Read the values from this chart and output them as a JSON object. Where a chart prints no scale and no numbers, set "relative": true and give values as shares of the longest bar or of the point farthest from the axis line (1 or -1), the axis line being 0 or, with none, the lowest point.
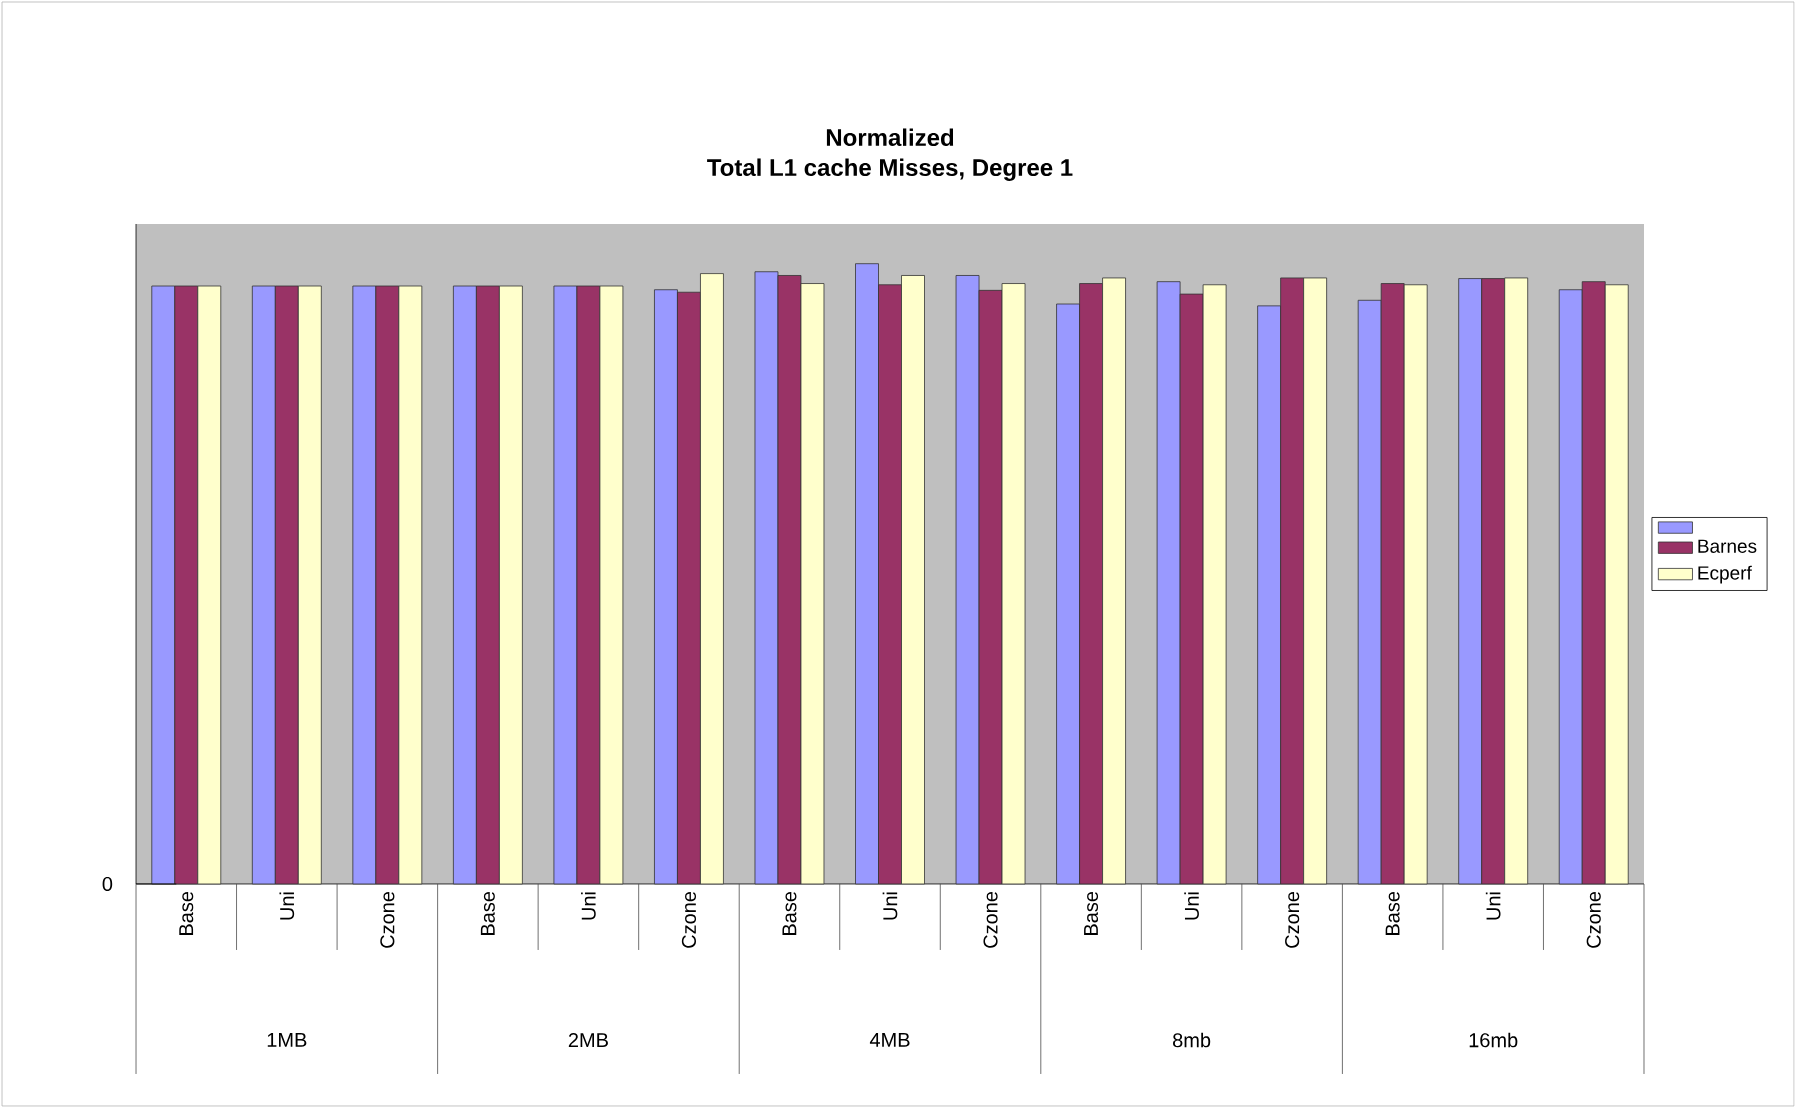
{
  "chart_data": {
    "type": "bar",
    "title": "Normalized",
    "subtitle": "Total L1 cache Misses, Degree 1",
    "relative": true,
    "categories": [
      "Base",
      "Uni",
      "Czone",
      "Base",
      "Uni",
      "Czone",
      "Base",
      "Uni",
      "Czone",
      "Base",
      "Uni",
      "Czone",
      "Base",
      "Uni",
      "Czone"
    ],
    "annotations": [
      "0",
      "1MB",
      "2MB",
      "4MB",
      "8mb",
      "16mb"
    ],
    "series": [
      {
        "color": "#9999ff",
        "values": [
          0.964,
          0.964,
          0.964,
          0.964,
          0.964,
          0.958,
          0.987,
          1.0,
          0.981,
          0.935,
          0.971,
          0.932,
          0.941,
          0.976,
          0.958
        ]
      },
      {
        "name": "Barnes",
        "color": "#993366",
        "values": [
          0.964,
          0.964,
          0.964,
          0.964,
          0.964,
          0.954,
          0.981,
          0.966,
          0.957,
          0.968,
          0.951,
          0.977,
          0.968,
          0.976,
          0.971
        ]
      },
      {
        "name": "Ecperf",
        "color": "#ffffcc",
        "values": [
          0.964,
          0.964,
          0.964,
          0.964,
          0.964,
          0.984,
          0.968,
          0.981,
          0.968,
          0.977,
          0.966,
          0.977,
          0.966,
          0.977,
          0.966
        ]
      }
    ],
    "legend": "right"
  }
}
